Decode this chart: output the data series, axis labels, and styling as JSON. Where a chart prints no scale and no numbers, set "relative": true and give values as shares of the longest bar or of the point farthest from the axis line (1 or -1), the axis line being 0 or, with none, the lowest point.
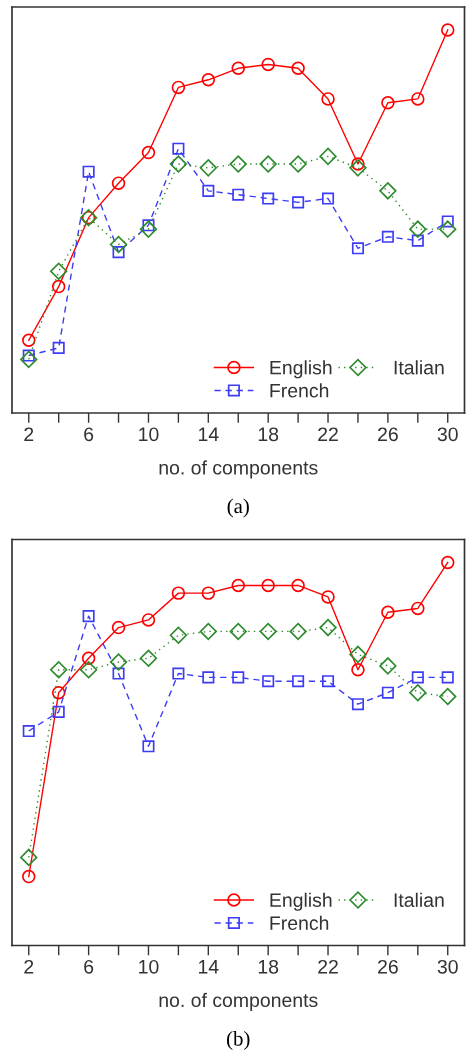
{
  "chart_data": [
    {
      "type": "line",
      "relative": true,
      "xlabel": "no. of components",
      "annotations": [
        "(a)"
      ],
      "legend": "bottom right",
      "tick_labels": "x",
      "x": [
        2,
        4,
        6,
        8,
        10,
        12,
        14,
        16,
        18,
        20,
        22,
        24,
        26,
        28,
        30
      ],
      "xlim": [
        0.88,
        31.12
      ],
      "xticks": [
        2,
        {
          "value": 4,
          "label": null
        },
        6,
        {
          "value": 8,
          "label": null
        },
        10,
        {
          "value": 12,
          "label": null
        },
        14,
        {
          "value": 16,
          "label": null
        },
        18,
        {
          "value": 20,
          "label": null
        },
        22,
        {
          "value": 24,
          "label": null
        },
        26,
        {
          "value": 28,
          "label": null
        },
        30
      ],
      "series": [
        {
          "name": "English",
          "color": "#ff0000",
          "marker": "circle",
          "line_style": "solid",
          "values": [
            0.19,
            0.33,
            0.51,
            0.6,
            0.68,
            0.85,
            0.87,
            0.9,
            0.91,
            0.9,
            0.82,
            0.65,
            0.81,
            0.82,
            1.0
          ]
        },
        {
          "name": "French",
          "color": "#3c3cf5",
          "marker": "square",
          "line_style": "dashed",
          "values": [
            0.15,
            0.17,
            0.63,
            0.42,
            0.49,
            0.69,
            0.58,
            0.57,
            0.56,
            0.55,
            0.56,
            0.43,
            0.46,
            0.45,
            0.5
          ]
        },
        {
          "name": "Italian",
          "color": "#2e8b2e",
          "marker": "diamond",
          "line_style": "dotted",
          "values": [
            0.14,
            0.37,
            0.51,
            0.44,
            0.48,
            0.65,
            0.64,
            0.65,
            0.65,
            0.65,
            0.67,
            0.64,
            0.58,
            0.48,
            0.48
          ]
        }
      ]
    },
    {
      "type": "line",
      "relative": true,
      "xlabel": "no. of components",
      "annotations": [
        "(b)"
      ],
      "legend": "bottom right",
      "tick_labels": "x",
      "x": [
        2,
        4,
        6,
        8,
        10,
        12,
        14,
        16,
        18,
        20,
        22,
        24,
        26,
        28,
        30
      ],
      "xlim": [
        0.88,
        31.12
      ],
      "xticks": [
        2,
        {
          "value": 4,
          "label": null
        },
        6,
        {
          "value": 8,
          "label": null
        },
        10,
        {
          "value": 12,
          "label": null
        },
        14,
        {
          "value": 16,
          "label": null
        },
        18,
        {
          "value": 20,
          "label": null
        },
        22,
        {
          "value": 24,
          "label": null
        },
        26,
        {
          "value": 28,
          "label": null
        },
        30
      ],
      "series": [
        {
          "name": "English",
          "color": "#ff0000",
          "marker": "circle",
          "line_style": "solid",
          "values": [
            0.18,
            0.66,
            0.75,
            0.83,
            0.85,
            0.92,
            0.92,
            0.94,
            0.94,
            0.94,
            0.91,
            0.72,
            0.87,
            0.88,
            1.0
          ]
        },
        {
          "name": "French",
          "color": "#3c3cf5",
          "marker": "square",
          "line_style": "dashed",
          "values": [
            0.56,
            0.61,
            0.86,
            0.71,
            0.52,
            0.71,
            0.7,
            0.7,
            0.69,
            0.69,
            0.69,
            0.63,
            0.66,
            0.7,
            0.7
          ]
        },
        {
          "name": "Italian",
          "color": "#2e8b2e",
          "marker": "diamond",
          "line_style": "dotted",
          "values": [
            0.23,
            0.72,
            0.72,
            0.74,
            0.75,
            0.81,
            0.82,
            0.82,
            0.82,
            0.82,
            0.83,
            0.76,
            0.73,
            0.66,
            0.65
          ]
        }
      ]
    }
  ]
}
